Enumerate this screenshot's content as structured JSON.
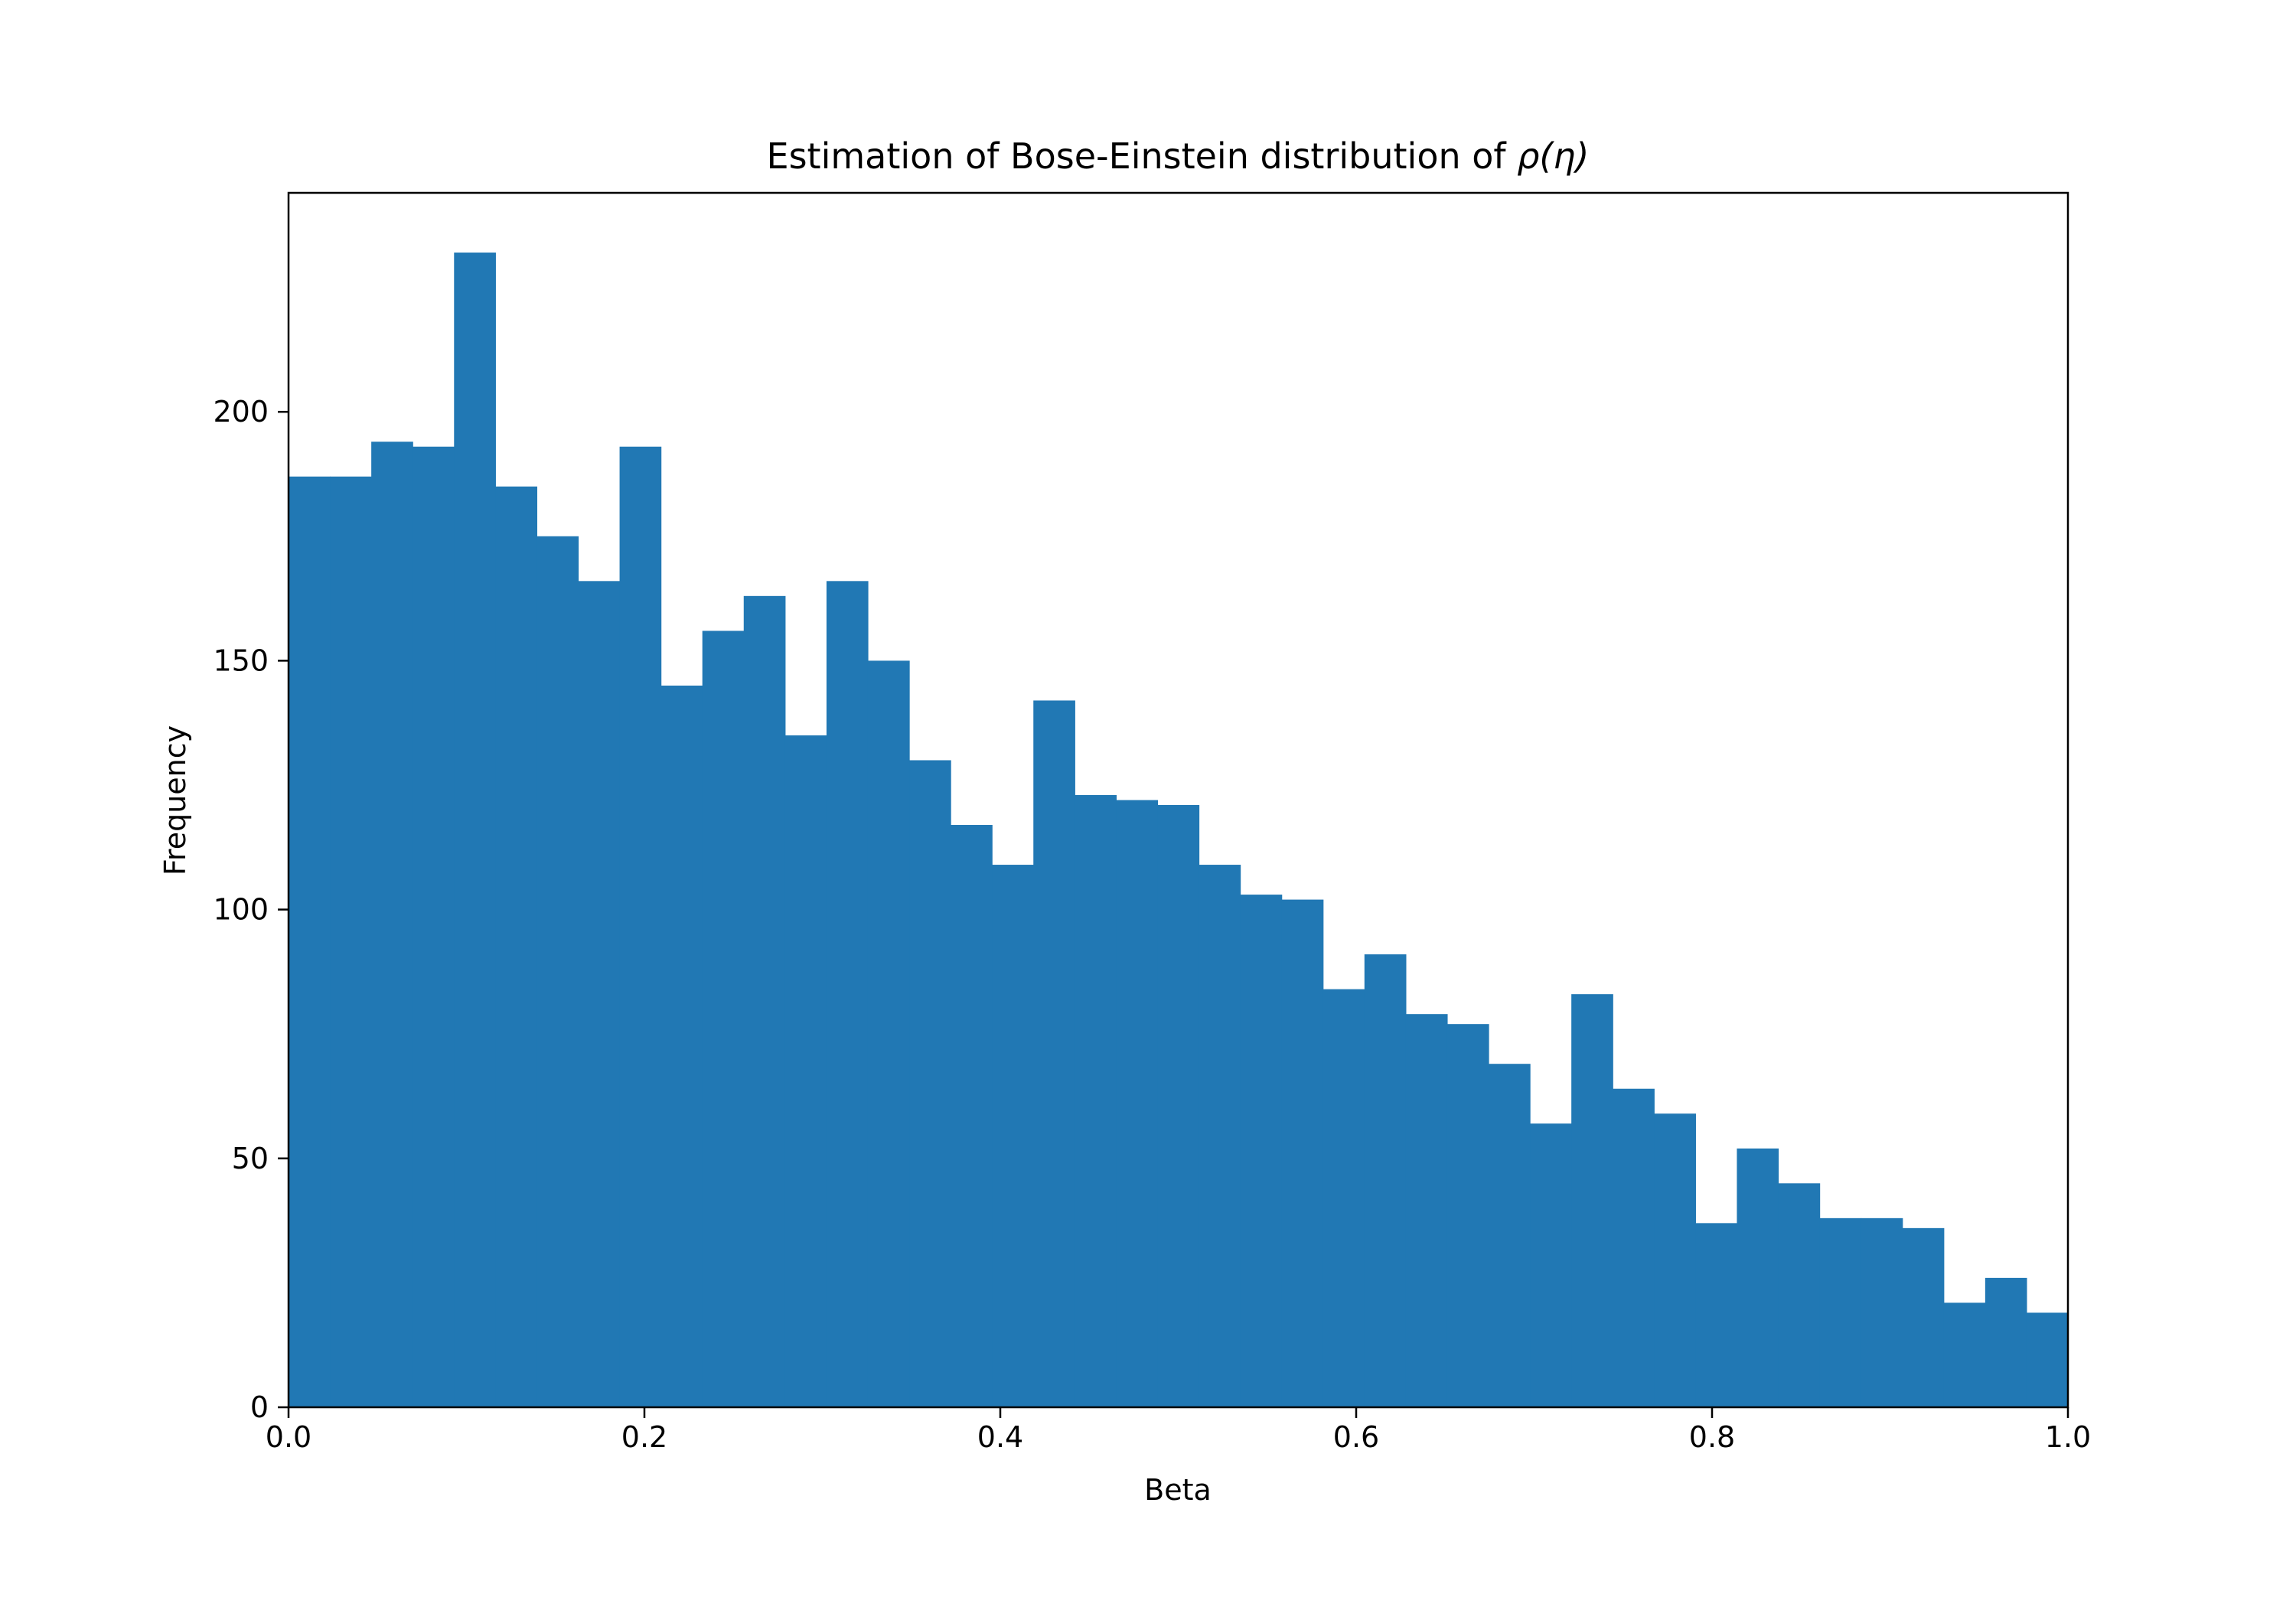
{
  "chart_data": {
    "type": "bar",
    "title_prefix": "Estimation of Bose-Einstein distribution of ",
    "title_math": "ρ(η)",
    "xlabel": "Beta",
    "ylabel": "Frequency",
    "xlim": [
      0.0,
      1.0
    ],
    "ylim": [
      0,
      244
    ],
    "xticks": [
      "0.0",
      "0.2",
      "0.4",
      "0.6",
      "0.8",
      "1.0"
    ],
    "yticks": [
      "0",
      "50",
      "100",
      "150",
      "200"
    ],
    "grid": false,
    "bar_color": "#2178b4",
    "bin_edges": [
      0.0,
      0.02326,
      0.04651,
      0.06977,
      0.09302,
      0.11628,
      0.13953,
      0.16279,
      0.18605,
      0.2093,
      0.23256,
      0.25581,
      0.27907,
      0.30233,
      0.32558,
      0.34884,
      0.37209,
      0.39535,
      0.4186,
      0.44186,
      0.46512,
      0.48837,
      0.51163,
      0.53488,
      0.55814,
      0.5814,
      0.60465,
      0.62791,
      0.65116,
      0.67442,
      0.69767,
      0.72093,
      0.74419,
      0.76744,
      0.7907,
      0.81395,
      0.83721,
      0.86047,
      0.88372,
      0.90698,
      0.93023,
      0.95349,
      0.97674,
      1.0
    ],
    "values": [
      187,
      187,
      194,
      193,
      232,
      185,
      175,
      166,
      193,
      145,
      156,
      163,
      135,
      166,
      150,
      130,
      117,
      109,
      142,
      123,
      122,
      121,
      109,
      103,
      102,
      84,
      91,
      79,
      77,
      69,
      57,
      83,
      64,
      59,
      37,
      52,
      45,
      38,
      38,
      36,
      21,
      26,
      19
    ]
  }
}
